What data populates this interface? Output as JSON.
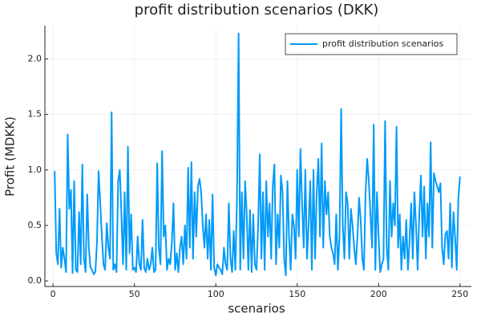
{
  "chart_data": {
    "type": "line",
    "title": "profit distribution scenarios (DKK)",
    "xlabel": "scenarios",
    "ylabel": "Profit (MDKK)",
    "legend": "top-right",
    "grid": true,
    "xlim": [
      -5,
      257
    ],
    "ylim": [
      -0.05,
      2.3
    ],
    "xticks": [
      0,
      50,
      100,
      150,
      200,
      250
    ],
    "yticks": [
      {
        "value": 0,
        "label": "0.0"
      },
      0.5,
      {
        "value": 1,
        "label": "1.0"
      },
      1.5,
      {
        "value": 2,
        "label": "2.0"
      }
    ],
    "x": [
      1,
      2,
      3,
      4,
      5,
      6,
      7,
      8,
      9,
      10,
      11,
      12,
      13,
      14,
      15,
      16,
      17,
      18,
      19,
      20,
      21,
      22,
      23,
      24,
      25,
      26,
      27,
      28,
      29,
      30,
      31,
      32,
      33,
      34,
      35,
      36,
      37,
      38,
      39,
      40,
      41,
      42,
      43,
      44,
      45,
      46,
      47,
      48,
      49,
      50,
      51,
      52,
      53,
      54,
      55,
      56,
      57,
      58,
      59,
      60,
      61,
      62,
      63,
      64,
      65,
      66,
      67,
      68,
      69,
      70,
      71,
      72,
      73,
      74,
      75,
      76,
      77,
      78,
      79,
      80,
      81,
      82,
      83,
      84,
      85,
      86,
      87,
      88,
      89,
      90,
      91,
      92,
      93,
      94,
      95,
      96,
      97,
      98,
      99,
      100,
      101,
      102,
      103,
      104,
      105,
      106,
      107,
      108,
      109,
      110,
      111,
      112,
      113,
      114,
      115,
      116,
      117,
      118,
      119,
      120,
      121,
      122,
      123,
      124,
      125,
      126,
      127,
      128,
      129,
      130,
      131,
      132,
      133,
      134,
      135,
      136,
      137,
      138,
      139,
      140,
      141,
      142,
      143,
      144,
      145,
      146,
      147,
      148,
      149,
      150,
      151,
      152,
      153,
      154,
      155,
      156,
      157,
      158,
      159,
      160,
      161,
      162,
      163,
      164,
      165,
      166,
      167,
      168,
      169,
      170,
      171,
      172,
      173,
      174,
      175,
      176,
      177,
      178,
      179,
      180,
      181,
      182,
      183,
      184,
      185,
      186,
      187,
      188,
      189,
      190,
      191,
      192,
      193,
      194,
      195,
      196,
      197,
      198,
      199,
      200,
      201,
      202,
      203,
      204,
      205,
      206,
      207,
      208,
      209,
      210,
      211,
      212,
      213,
      214,
      215,
      216,
      217,
      218,
      219,
      220,
      221,
      222,
      223,
      224,
      225,
      226,
      227,
      228,
      229,
      230,
      231,
      232,
      233,
      234,
      235,
      236,
      237,
      238,
      239,
      240,
      241,
      242,
      243,
      244,
      245,
      246,
      247,
      248,
      249,
      250
    ],
    "series": [
      {
        "name": "profit distribution scenarios",
        "color": "#009af9",
        "values": [
          0.99,
          0.25,
          0.15,
          0.65,
          0.12,
          0.3,
          0.2,
          0.08,
          1.32,
          0.65,
          0.82,
          0.07,
          0.9,
          0.1,
          0.08,
          0.62,
          0.15,
          1.05,
          0.2,
          0.08,
          0.78,
          0.3,
          0.12,
          0.1,
          0.06,
          0.08,
          0.35,
          0.99,
          0.7,
          0.4,
          0.15,
          0.1,
          0.52,
          0.3,
          0.2,
          1.52,
          0.1,
          0.15,
          0.08,
          0.9,
          1.0,
          0.6,
          0.15,
          0.8,
          0.1,
          1.21,
          0.25,
          0.6,
          0.1,
          0.12,
          0.08,
          0.4,
          0.15,
          0.1,
          0.55,
          0.12,
          0.08,
          0.2,
          0.1,
          0.15,
          0.3,
          0.08,
          0.1,
          1.06,
          0.3,
          0.15,
          1.17,
          0.4,
          0.5,
          0.1,
          0.2,
          0.15,
          0.35,
          0.7,
          0.1,
          0.25,
          0.08,
          0.3,
          0.4,
          0.15,
          0.5,
          0.2,
          1.02,
          0.3,
          1.07,
          0.2,
          0.8,
          0.4,
          0.85,
          0.92,
          0.8,
          0.5,
          0.3,
          0.6,
          0.2,
          0.55,
          0.1,
          0.78,
          0.12,
          0.05,
          0.15,
          0.12,
          0.1,
          0.06,
          0.3,
          0.15,
          0.1,
          0.7,
          0.2,
          0.08,
          0.45,
          0.1,
          0.74,
          2.23,
          0.1,
          0.8,
          0.2,
          0.9,
          0.6,
          0.1,
          0.64,
          0.08,
          0.6,
          0.15,
          0.1,
          0.5,
          1.14,
          0.2,
          0.8,
          0.1,
          0.9,
          0.4,
          0.7,
          0.2,
          0.85,
          1.05,
          0.15,
          0.6,
          0.3,
          0.95,
          0.8,
          0.2,
          0.05,
          0.9,
          0.4,
          0.1,
          0.6,
          0.5,
          0.2,
          1.0,
          0.4,
          1.19,
          0.7,
          0.3,
          1.0,
          0.2,
          0.5,
          0.9,
          0.1,
          1.0,
          0.2,
          0.8,
          1.1,
          0.4,
          1.24,
          0.3,
          0.9,
          0.6,
          0.8,
          0.4,
          0.3,
          0.25,
          0.15,
          0.6,
          0.1,
          0.4,
          1.55,
          0.5,
          0.2,
          0.8,
          0.7,
          0.2,
          0.65,
          0.5,
          0.3,
          0.15,
          0.4,
          0.75,
          0.55,
          0.2,
          0.1,
          0.8,
          1.1,
          0.9,
          0.6,
          0.3,
          1.41,
          0.1,
          0.8,
          0.4,
          0.08,
          0.15,
          0.2,
          1.44,
          0.3,
          0.1,
          0.9,
          0.4,
          0.7,
          0.5,
          1.39,
          0.3,
          0.6,
          0.1,
          0.4,
          0.2,
          0.55,
          0.1,
          0.35,
          0.7,
          0.2,
          0.8,
          0.5,
          0.1,
          0.6,
          0.95,
          0.4,
          0.85,
          0.2,
          0.7,
          0.4,
          1.25,
          0.3,
          0.97,
          0.9,
          0.85,
          0.8,
          0.88,
          0.3,
          0.15,
          0.42,
          0.45,
          0.2,
          0.7,
          0.12,
          0.62,
          0.4,
          0.1,
          0.75,
          0.94
        ]
      }
    ]
  }
}
